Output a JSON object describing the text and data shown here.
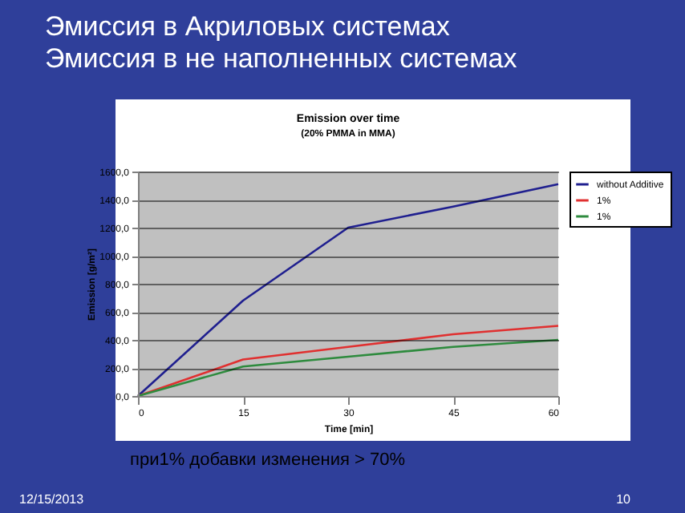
{
  "chart_data": {
    "type": "line",
    "title": "Emission over time",
    "subtitle": "(20% PMMA in MMA)",
    "xlabel": "Time [min]",
    "ylabel": "Emission [g/m²]",
    "x": [
      0,
      15,
      30,
      45,
      60
    ],
    "series": [
      {
        "name": "without Additive",
        "color": "#1f1f8f",
        "values": [
          0,
          680,
          1200,
          1350,
          1510
        ]
      },
      {
        "name": "1%",
        "color": "#e03030",
        "values": [
          0,
          260,
          350,
          440,
          500
        ]
      },
      {
        "name": "1%",
        "color": "#2e8b3e",
        "values": [
          0,
          210,
          280,
          350,
          400
        ]
      }
    ],
    "xlim": [
      0,
      60
    ],
    "xticks": [
      0,
      15,
      30,
      45,
      60
    ],
    "ylim": [
      0,
      1600
    ],
    "yticks": [
      {
        "value": 0,
        "label": "0,0"
      },
      {
        "value": 200,
        "label": "200,0"
      },
      {
        "value": 400,
        "label": "400,0"
      },
      {
        "value": 600,
        "label": "600,0"
      },
      {
        "value": 800,
        "label": "800,0"
      },
      {
        "value": 1000,
        "label": "1000,0"
      },
      {
        "value": 1200,
        "label": "1200,0"
      },
      {
        "value": 1400,
        "label": "1400,0"
      },
      {
        "value": 1600,
        "label": "1600,0"
      }
    ],
    "grid": "y",
    "legend": "right",
    "marker": "none",
    "line_style": "solid",
    "annotations": [
      "Эмиссия в Акриловых системах",
      "Эмиссия в не наполненных системах",
      "при1% добавки изменения > 70%",
      "12/15/2013",
      "10"
    ]
  }
}
